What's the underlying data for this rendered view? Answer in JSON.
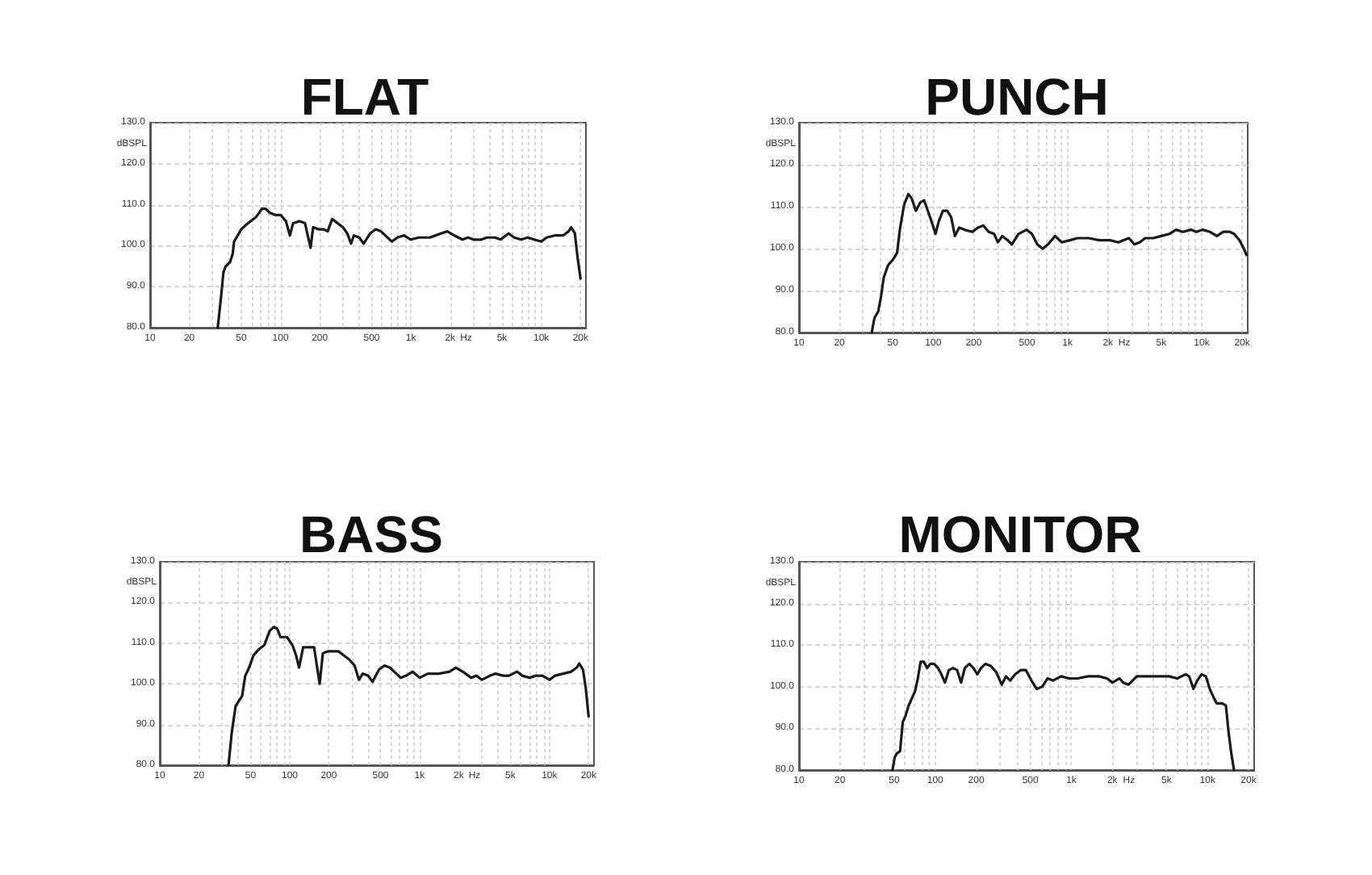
{
  "chart_data": [
    {
      "type": "line",
      "title": "FLAT",
      "xlabel": "Hz",
      "ylabel": "dBSPL",
      "log": "x",
      "grid": true,
      "xlim": [
        10,
        22000
      ],
      "xticks": [
        10,
        20,
        {
          "value": 30,
          "label": null
        },
        {
          "value": 40,
          "label": null
        },
        50,
        {
          "value": 60,
          "label": null
        },
        {
          "value": 70,
          "label": null
        },
        {
          "value": 80,
          "label": null
        },
        {
          "value": 90,
          "label": null
        },
        100,
        200,
        {
          "value": 300,
          "label": null
        },
        {
          "value": 400,
          "label": null
        },
        500,
        {
          "value": 600,
          "label": null
        },
        {
          "value": 700,
          "label": null
        },
        {
          "value": 800,
          "label": null
        },
        {
          "value": 900,
          "label": null
        },
        {
          "value": 1000,
          "label": "1k"
        },
        {
          "value": 2000,
          "label": "2k"
        },
        {
          "value": 3000,
          "label": null
        },
        {
          "value": 4000,
          "label": null
        },
        {
          "value": 5000,
          "label": "5k"
        },
        {
          "value": 6000,
          "label": null
        },
        {
          "value": 7000,
          "label": null
        },
        {
          "value": 8000,
          "label": null
        },
        {
          "value": 9000,
          "label": null
        },
        {
          "value": 10000,
          "label": "10k"
        },
        {
          "value": 20000,
          "label": "20k"
        }
      ],
      "ylim": [
        80,
        130
      ],
      "yticks": [
        {
          "value": 80,
          "label": "80.0"
        },
        {
          "value": 90,
          "label": "90.0"
        },
        {
          "value": 100,
          "label": "100.0"
        },
        {
          "value": 110,
          "label": "110.0"
        },
        {
          "value": 120,
          "label": "120.0"
        },
        {
          "value": 130,
          "label": "130.0"
        }
      ],
      "series": [
        {
          "color": "#1a1a1a",
          "x": [
            33,
            35,
            36.5,
            38,
            41,
            43,
            44,
            46,
            50,
            54,
            59,
            65,
            72,
            77,
            83,
            91,
            100,
            110,
            118,
            125,
            140,
            154,
            170,
            178,
            196,
            215,
            230,
            249,
            274,
            301,
            325,
            348,
            365,
            402,
            434,
            487,
            536,
            590,
            715,
            787,
            883,
            1000,
            1150,
            1400,
            1700,
            1900,
            2150,
            2490,
            2740,
            3020,
            3480,
            3830,
            4420,
            4870,
            5620,
            6190,
            7010,
            7870,
            8830,
            10000,
            11000,
            12700,
            14700,
            16200,
            16950,
            18100,
            19000,
            20000
          ],
          "values": [
            80,
            87.5,
            93.5,
            95,
            96,
            98,
            101,
            102,
            104,
            105,
            106,
            107,
            109,
            109,
            108,
            107.5,
            107.5,
            106,
            102.5,
            105.5,
            106,
            105.5,
            99.5,
            104.5,
            104,
            104,
            103.5,
            106.5,
            105.5,
            104.5,
            103,
            100.5,
            102.5,
            102,
            100.5,
            103,
            104,
            103.5,
            101,
            102,
            102.5,
            101.5,
            102,
            102,
            103,
            103.5,
            102.5,
            101.5,
            102,
            101.5,
            101.5,
            102,
            102,
            101.5,
            103,
            102,
            101.5,
            102,
            101.5,
            101,
            102,
            102.5,
            102.5,
            103.5,
            104.5,
            103,
            97,
            92
          ]
        }
      ]
    },
    {
      "type": "line",
      "title": "PUNCH",
      "xlabel": "Hz",
      "ylabel": "dBSPL",
      "log": "x",
      "grid": true,
      "xlim": [
        10,
        22000
      ],
      "xticks": [
        10,
        20,
        {
          "value": 30,
          "label": null
        },
        {
          "value": 40,
          "label": null
        },
        50,
        {
          "value": 60,
          "label": null
        },
        {
          "value": 70,
          "label": null
        },
        {
          "value": 80,
          "label": null
        },
        {
          "value": 90,
          "label": null
        },
        100,
        200,
        {
          "value": 300,
          "label": null
        },
        {
          "value": 400,
          "label": null
        },
        500,
        {
          "value": 600,
          "label": null
        },
        {
          "value": 700,
          "label": null
        },
        {
          "value": 800,
          "label": null
        },
        {
          "value": 900,
          "label": null
        },
        {
          "value": 1000,
          "label": "1k"
        },
        {
          "value": 2000,
          "label": "2k"
        },
        {
          "value": 3000,
          "label": null
        },
        {
          "value": 4000,
          "label": null
        },
        {
          "value": 5000,
          "label": "5k"
        },
        {
          "value": 6000,
          "label": null
        },
        {
          "value": 7000,
          "label": null
        },
        {
          "value": 8000,
          "label": null
        },
        {
          "value": 9000,
          "label": null
        },
        {
          "value": 10000,
          "label": "10k"
        },
        {
          "value": 20000,
          "label": "20k"
        }
      ],
      "ylim": [
        80,
        130
      ],
      "yticks": [
        {
          "value": 80,
          "label": "80.0"
        },
        {
          "value": 90,
          "label": "90.0"
        },
        {
          "value": 100,
          "label": "100.0"
        },
        {
          "value": 110,
          "label": "110.0"
        },
        {
          "value": 120,
          "label": "120.0"
        },
        {
          "value": 130,
          "label": "130.0"
        }
      ],
      "series": [
        {
          "color": "#1a1a1a",
          "x": [
            34.8,
            36.5,
            38.9,
            40.8,
            42.7,
            46,
            50.4,
            53.8,
            56.4,
            60.7,
            65.3,
            69,
            74.3,
            80.1,
            85.5,
            91.2,
            98.2,
            104,
            110,
            118,
            127,
            136,
            145,
            156,
            171,
            196,
            215,
            236,
            259,
            284,
            303,
            327,
            358,
            385,
            431,
            495,
            543,
            596,
            653,
            716,
            809,
            903,
            1040,
            1190,
            1435,
            1730,
            2080,
            2390,
            2620,
            2870,
            3150,
            3450,
            3790,
            4350,
            5000,
            5740,
            6420,
            7230,
            8310,
            9120,
            10190,
            11490,
            12950,
            14480,
            16180,
            17420,
            19100,
            20560,
            21540
          ],
          "values": [
            80,
            83.5,
            85,
            88.5,
            93,
            96,
            97.5,
            99,
            104.5,
            110.5,
            113,
            112,
            109,
            111,
            111.5,
            109,
            106,
            103.5,
            106.5,
            109,
            109,
            107.5,
            103,
            105,
            104.5,
            104,
            105,
            105.5,
            104,
            103.5,
            101.5,
            103,
            102,
            101,
            103.5,
            104.5,
            103.5,
            101,
            100,
            101,
            103,
            101.5,
            102,
            102.5,
            102.5,
            102,
            102,
            101.5,
            102,
            102.5,
            101,
            101.5,
            102.5,
            102.5,
            103,
            103.5,
            104.5,
            104,
            104.5,
            104,
            104.5,
            104,
            103,
            104,
            104,
            103.5,
            102,
            100,
            98.5
          ]
        }
      ]
    },
    {
      "type": "line",
      "title": "BASS",
      "xlabel": "Hz",
      "ylabel": "dBSPL",
      "log": "x",
      "grid": true,
      "xlim": [
        10,
        22000
      ],
      "xticks": [
        10,
        20,
        {
          "value": 30,
          "label": null
        },
        {
          "value": 40,
          "label": null
        },
        50,
        {
          "value": 60,
          "label": null
        },
        {
          "value": 70,
          "label": null
        },
        {
          "value": 80,
          "label": null
        },
        {
          "value": 90,
          "label": null
        },
        100,
        200,
        {
          "value": 300,
          "label": null
        },
        {
          "value": 400,
          "label": null
        },
        500,
        {
          "value": 600,
          "label": null
        },
        {
          "value": 700,
          "label": null
        },
        {
          "value": 800,
          "label": null
        },
        {
          "value": 900,
          "label": null
        },
        {
          "value": 1000,
          "label": "1k"
        },
        {
          "value": 2000,
          "label": "2k"
        },
        {
          "value": 3000,
          "label": null
        },
        {
          "value": 4000,
          "label": null
        },
        {
          "value": 5000,
          "label": "5k"
        },
        {
          "value": 6000,
          "label": null
        },
        {
          "value": 7000,
          "label": null
        },
        {
          "value": 8000,
          "label": null
        },
        {
          "value": 9000,
          "label": null
        },
        {
          "value": 10000,
          "label": "10k"
        },
        {
          "value": 20000,
          "label": "20k"
        }
      ],
      "ylim": [
        80,
        130
      ],
      "yticks": [
        {
          "value": 80,
          "label": "80.0"
        },
        {
          "value": 90,
          "label": "90.0"
        },
        {
          "value": 100,
          "label": "100.0"
        },
        {
          "value": 110,
          "label": "110.0"
        },
        {
          "value": 120,
          "label": "120.0"
        },
        {
          "value": 130,
          "label": "130.0"
        }
      ],
      "series": [
        {
          "color": "#1a1a1a",
          "x": [
            33.8,
            35.8,
            38.3,
            41,
            43,
            45.5,
            48.7,
            52.6,
            57.9,
            63.7,
            70.1,
            75.7,
            80.2,
            84.9,
            95.3,
            105,
            112,
            118,
            127,
            140,
            154,
            170,
            180,
            196,
            215,
            237,
            261,
            287,
            316,
            341,
            365,
            402,
            434,
            487,
            536,
            590,
            715,
            787,
            883,
            1000,
            1155,
            1400,
            1695,
            1900,
            2150,
            2490,
            2740,
            3015,
            3480,
            3830,
            4420,
            4870,
            5620,
            6190,
            7010,
            7870,
            8830,
            10000,
            11000,
            12700,
            14700,
            16200,
            16950,
            18100,
            19000,
            20000
          ],
          "values": [
            80,
            88,
            94.5,
            96,
            97,
            102,
            104,
            107,
            108.5,
            109.5,
            113,
            114,
            113.5,
            111.5,
            111.5,
            109.5,
            107,
            104,
            109,
            109,
            109,
            100,
            107.5,
            108,
            108,
            108,
            107,
            106,
            104.5,
            101,
            102.5,
            102,
            100.5,
            103.5,
            104.5,
            104,
            101.5,
            102,
            103,
            101.5,
            102.5,
            102.5,
            103,
            104,
            103,
            101.5,
            102,
            101,
            102,
            102.5,
            102,
            102,
            103,
            102,
            101.5,
            102,
            102,
            101,
            102,
            102.5,
            103,
            104,
            105,
            103.5,
            99,
            92
          ]
        }
      ]
    },
    {
      "type": "line",
      "title": "MONITOR",
      "xlabel": "Hz",
      "ylabel": "dBSPL",
      "log": "x",
      "grid": true,
      "xlim": [
        10,
        22000
      ],
      "xticks": [
        10,
        20,
        {
          "value": 30,
          "label": null
        },
        {
          "value": 40,
          "label": null
        },
        50,
        {
          "value": 60,
          "label": null
        },
        {
          "value": 70,
          "label": null
        },
        {
          "value": 80,
          "label": null
        },
        {
          "value": 90,
          "label": null
        },
        100,
        200,
        {
          "value": 300,
          "label": null
        },
        {
          "value": 400,
          "label": null
        },
        500,
        {
          "value": 600,
          "label": null
        },
        {
          "value": 700,
          "label": null
        },
        {
          "value": 800,
          "label": null
        },
        {
          "value": 900,
          "label": null
        },
        {
          "value": 1000,
          "label": "1k"
        },
        {
          "value": 2000,
          "label": "2k"
        },
        {
          "value": 3000,
          "label": null
        },
        {
          "value": 4000,
          "label": null
        },
        {
          "value": 5000,
          "label": "5k"
        },
        {
          "value": 6000,
          "label": null
        },
        {
          "value": 7000,
          "label": null
        },
        {
          "value": 8000,
          "label": null
        },
        {
          "value": 9000,
          "label": null
        },
        {
          "value": 10000,
          "label": "10k"
        },
        {
          "value": 20000,
          "label": "20k"
        }
      ],
      "ylim": [
        80,
        130
      ],
      "yticks": [
        {
          "value": 80,
          "label": "80.0"
        },
        {
          "value": 90,
          "label": "90.0"
        },
        {
          "value": 100,
          "label": "100.0"
        },
        {
          "value": 110,
          "label": "110.0"
        },
        {
          "value": 120,
          "label": "120.0"
        },
        {
          "value": 130,
          "label": "130.0"
        }
      ],
      "series": [
        {
          "color": "#1a1a1a",
          "x": [
            48.6,
            50.4,
            52.3,
            55.2,
            57.8,
            60.5,
            63.9,
            68.1,
            71.3,
            74.6,
            78.2,
            82.5,
            87.2,
            92.1,
            98.2,
            105,
            111,
            118,
            126,
            135,
            145,
            155,
            165,
            178,
            191,
            204,
            217,
            234,
            256,
            281,
            308,
            331,
            356,
            387,
            424,
            464,
            509,
            557,
            611,
            669,
            733,
            841,
            964,
            1106,
            1327,
            1594,
            1828,
            2003,
            2255,
            2404,
            2634,
            3021,
            3465,
            3973,
            4557,
            5227,
            5995,
            6875,
            7333,
            7884,
            8407,
            9044,
            9730,
            10370,
            11060,
            11680,
            12800,
            13640,
            14280,
            14950,
            15650
          ],
          "values": [
            80,
            83,
            84,
            84.5,
            91.5,
            93,
            95.5,
            97.5,
            99,
            102,
            106,
            106,
            104.5,
            105.5,
            105.5,
            104.5,
            103,
            101,
            104,
            104.5,
            104,
            101,
            104.5,
            105.5,
            104.5,
            103,
            104.5,
            105.5,
            105,
            103.5,
            100.5,
            102.5,
            101.5,
            103,
            104,
            104,
            101.5,
            99.5,
            100,
            102,
            101.5,
            102.5,
            102,
            102,
            102.5,
            102.5,
            102,
            101,
            102,
            101,
            100.5,
            102.5,
            102.5,
            102.5,
            102.5,
            102.5,
            102,
            103,
            102.5,
            99.5,
            101.5,
            103,
            102.5,
            99.5,
            97.5,
            96,
            96,
            95.5,
            89,
            84,
            80
          ]
        }
      ]
    }
  ]
}
